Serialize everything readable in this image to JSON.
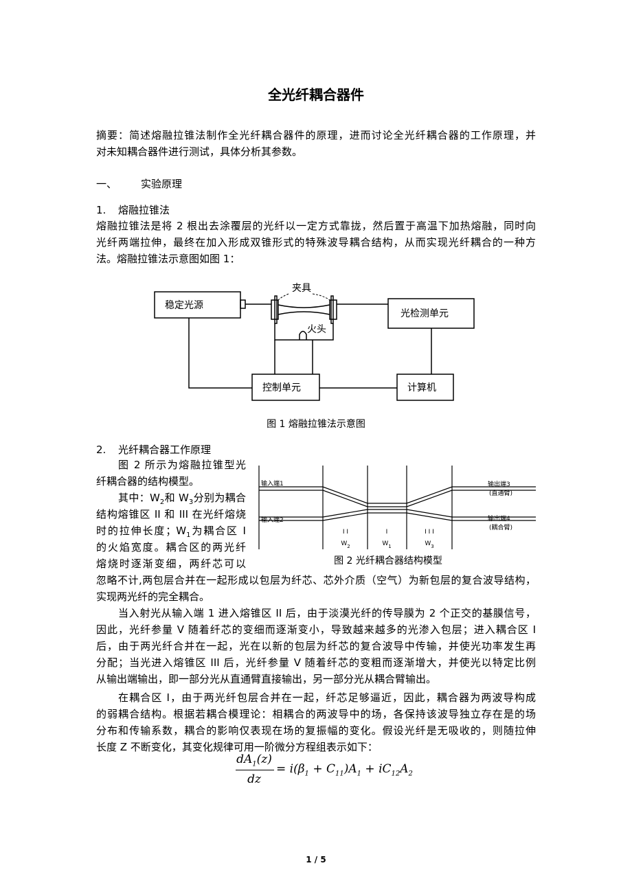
{
  "title": "全光纤耦合器件",
  "abstract": [
    "摘要：简述熔融拉锥法制作全光纤耦合器件的原理，进而讨论全光纤耦合器的工作原理，并",
    "对未知耦合器件进行测试，具体分析其参数。"
  ],
  "section_1": {
    "number": "一、",
    "title": "实验原理"
  },
  "subsection_1": {
    "number": "1.",
    "title": "熔融拉锥法"
  },
  "paragraph_1": [
    "熔融拉锥法是将 2 根出去涂覆层的光纤以一定方式靠拢，然后置于高温下加热熔融，同时向",
    "光纤两端拉伸，最终在加入形成双锥形式的特殊波导耦合结构，从而实现光纤耦合的一种方",
    "法。熔融拉锥法示意图如图 1："
  ],
  "figure_1": {
    "labels": {
      "source": "稳定光源",
      "clamp": "夹具",
      "flame": "火头",
      "detector": "光检测单元",
      "control": "控制单元",
      "computer": "计算机"
    },
    "caption": "图  1 熔融拉锥法示意图"
  },
  "subsection_2": {
    "number": "2.",
    "title": "光纤耦合器工作原理"
  },
  "paragraph_2": [
    "图 2 所示为熔融拉锥型光",
    "纤耦合器的结构模型。",
    [
      "其中：W",
      {
        "sub": "2"
      },
      "和 W",
      {
        "sub": "3"
      },
      "分别为耦合"
    ],
    "结构熔锥区 II 和 III 在光纤熔烧",
    [
      "时的拉伸长度；W",
      {
        "sub": "1"
      },
      "为耦合区 I"
    ],
    "的火焰宽度。耦合区的两光纤",
    "熔烧时逐渐变细，两纤芯可以",
    "忽略不计,两包层合并在一起形成以包层为纤芯、芯外介质（空气）为新包层的复合波导结构，",
    "实现两光纤的完全耦合。"
  ],
  "figure_2": {
    "labels": {
      "input_1": "输入端1",
      "input_2": "输入端2",
      "output_3": "输出端3",
      "output_3_note": "(直通臂)",
      "output_4": "输出端4",
      "output_4_note": "(耦合臂)",
      "zone_2": "I I",
      "zone_1": "I",
      "zone_3": "I I I",
      "w_2": [
        "W",
        {
          "sub": "2"
        }
      ],
      "w_1": [
        "W",
        {
          "sub": "1"
        }
      ],
      "w_3": [
        "W",
        {
          "sub": "3"
        }
      ]
    },
    "caption": "图  2  光纤耦合器结构模型"
  },
  "paragraph_3": [
    "当入射光从输入端 1 进入熔锥区 II 后，由于淡漠光纤的传导膜为 2 个正交的基膜信号，",
    "因此，光纤参量 V 随着纤芯的变细而逐渐变小，导致越来越多的光渗入包层；进入耦合区 I",
    "后，由于两光纤合并在一起，光在以新的包层为纤芯的复合波导中传输，并使光功率发生再",
    "分配；当光进入熔锥区 III 后，光纤参量 V 随着纤芯的变粗而逐渐增大，并使光以特定比例",
    "从输出端输出，即一部分光从直通臂直接输出，另一部分光从耦合臂输出。"
  ],
  "paragraph_4": [
    "在耦合区 I，由于两光纤包层合并在一起，纤芯足够逼近，因此，耦合器为两波导构成",
    "的弱耦合结构。根据若耦合模理论：相耦合的两波导中的场，各保持该波导独立存在是的场",
    "分布和传输系数，耦合的影响仅表现在场的复振幅的变化。假设光纤是无吸收的，则随拉伸",
    "长度 Z 不断变化，其变化规律可用一阶微分方程组表示如下："
  ],
  "equation": {
    "numerator": [
      "dA",
      {
        "sub": "1"
      },
      "(z)"
    ],
    "denominator": "dz",
    "rhs": [
      "= i(β",
      {
        "sub": "1"
      },
      " + C",
      {
        "sub": "11"
      },
      ")A",
      {
        "sub": "1"
      },
      " + iC",
      {
        "sub": "12"
      },
      "A",
      {
        "sub": "2"
      }
    ]
  },
  "footer": {
    "page": "1 / 5"
  }
}
